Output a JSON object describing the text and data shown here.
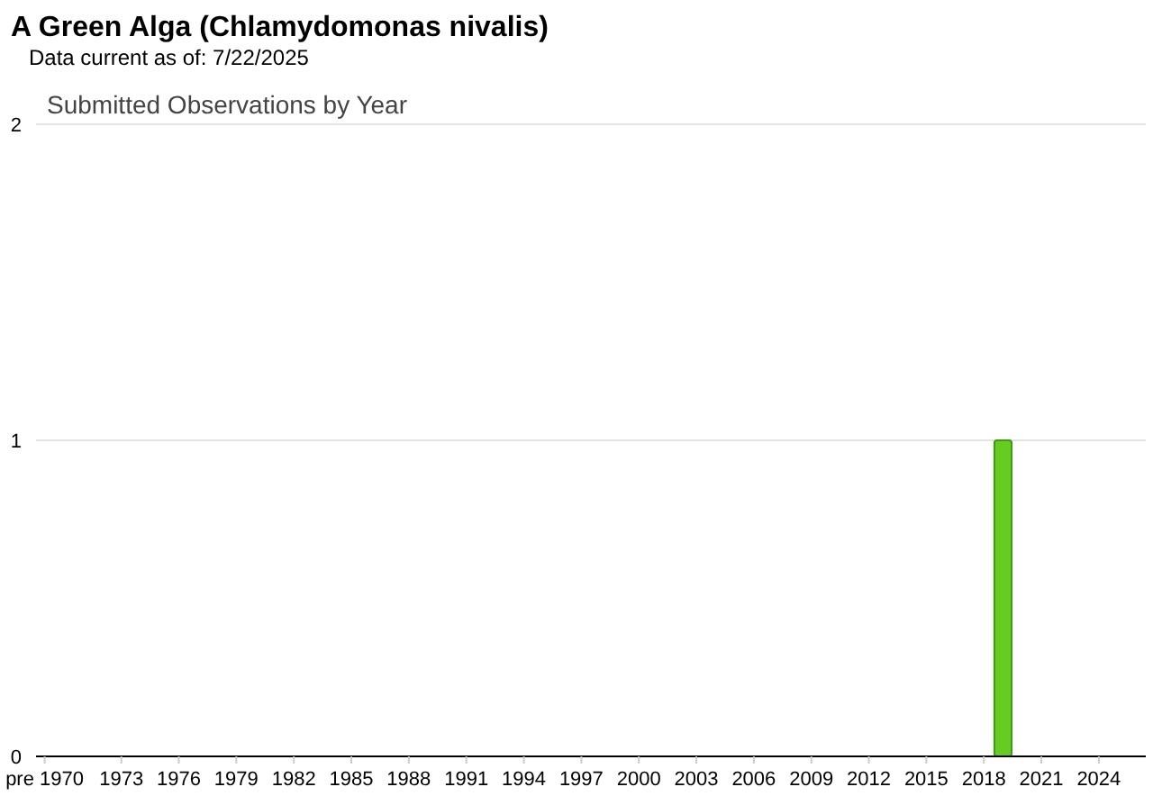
{
  "chart_data": {
    "type": "bar",
    "title": "A Green Alga   (Chlamydomonas nivalis)",
    "subtitle": "Data current as of: 7/22/2025",
    "annotations": [
      "Submitted Observations by Year"
    ],
    "categories": [
      "pre 1970",
      null,
      null,
      null,
      "1973",
      null,
      null,
      "1976",
      null,
      null,
      "1979",
      null,
      null,
      "1982",
      null,
      null,
      "1985",
      null,
      null,
      "1988",
      null,
      null,
      "1991",
      null,
      null,
      "1994",
      null,
      null,
      "1997",
      null,
      null,
      "2000",
      null,
      null,
      "2003",
      null,
      null,
      "2006",
      null,
      null,
      "2009",
      null,
      null,
      "2012",
      null,
      null,
      "2015",
      null,
      null,
      "2018",
      null,
      null,
      "2021",
      null,
      null,
      "2024",
      null,
      null
    ],
    "values": [
      0,
      0,
      0,
      0,
      0,
      0,
      0,
      0,
      0,
      0,
      0,
      0,
      0,
      0,
      0,
      0,
      0,
      0,
      0,
      0,
      0,
      0,
      0,
      0,
      0,
      0,
      0,
      0,
      0,
      0,
      0,
      0,
      0,
      0,
      0,
      0,
      0,
      0,
      0,
      0,
      0,
      0,
      0,
      0,
      0,
      0,
      0,
      0,
      0,
      0,
      1,
      0,
      0,
      0,
      0,
      0,
      0,
      0
    ],
    "color": "#66cc22",
    "ylim": [
      0,
      2
    ],
    "yticks": [
      0,
      1,
      2
    ],
    "grid": "y"
  }
}
